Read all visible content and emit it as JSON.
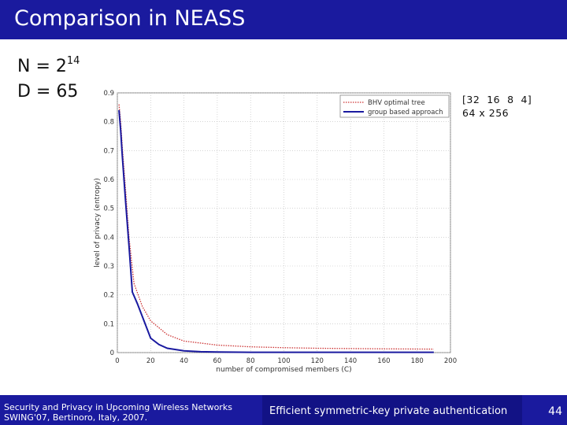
{
  "slide": {
    "title": "Comparison in NEASS",
    "param_n_label": "N = 2",
    "param_n_exp": "14",
    "param_d": "D = 65",
    "config_line1": "[32  16  8  4]",
    "config_line2": "64 x 256",
    "colors": {
      "bar": "#1a1a9e",
      "series1": "#cc3333",
      "series2": "#1a1aa0"
    }
  },
  "footer": {
    "line1": "Security and Privacy in Upcoming Wireless Networks",
    "line2": "SWING'07, Bertinoro, Italy, 2007.",
    "center": "Efficient symmetric-key private authentication",
    "page": "44"
  },
  "chart_data": {
    "type": "line",
    "xlabel": "number of compromised members (C)",
    "ylabel": "level of privacy (entropy)",
    "xlim": [
      0,
      200
    ],
    "ylim": [
      0,
      0.9
    ],
    "xticks": [
      0,
      20,
      40,
      60,
      80,
      100,
      120,
      140,
      160,
      180,
      200
    ],
    "yticks": [
      0,
      0.1,
      0.2,
      0.3,
      0.4,
      0.5,
      0.6,
      0.7,
      0.8,
      0.9
    ],
    "grid": true,
    "legend_position": "top-right",
    "series": [
      {
        "name": "BHV optimal tree",
        "style": "dotted",
        "color": "#cc3333",
        "x": [
          1,
          2,
          3,
          5,
          7,
          10,
          15,
          20,
          30,
          40,
          60,
          80,
          100,
          120,
          140,
          160,
          190
        ],
        "y": [
          0.86,
          0.8,
          0.71,
          0.56,
          0.4,
          0.24,
          0.16,
          0.11,
          0.062,
          0.04,
          0.026,
          0.02,
          0.017,
          0.015,
          0.014,
          0.013,
          0.012
        ]
      },
      {
        "name": "group based approach",
        "style": "solid",
        "color": "#1a1aa0",
        "x": [
          1,
          2,
          3,
          5,
          7,
          9,
          12,
          20,
          25,
          30,
          40,
          50,
          60,
          80,
          100,
          140,
          190
        ],
        "y": [
          0.84,
          0.77,
          0.68,
          0.52,
          0.37,
          0.21,
          0.17,
          0.05,
          0.028,
          0.015,
          0.006,
          0.003,
          0.002,
          0.001,
          0.001,
          0.001,
          0.001
        ]
      }
    ]
  }
}
